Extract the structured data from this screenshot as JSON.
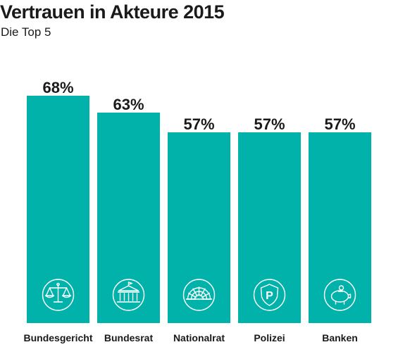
{
  "chart_data": {
    "type": "bar",
    "title": "Vertrauen in Akteure 2015",
    "subtitle": "Die Top 5",
    "categories": [
      "Bundesgericht",
      "Bundesrat",
      "Nationalrat",
      "Polizei",
      "Banken"
    ],
    "values": [
      68,
      63,
      57,
      57,
      57
    ],
    "value_labels": [
      "68%",
      "63%",
      "57%",
      "57%",
      "57%"
    ],
    "icons": [
      "scales-icon",
      "government-building-icon",
      "parliament-icon",
      "police-badge-icon",
      "piggy-bank-icon"
    ],
    "ylim": [
      0,
      100
    ],
    "grid": false,
    "legend": "none",
    "xlabel": "",
    "ylabel": ""
  },
  "colors": {
    "bar": "#00b2a9",
    "text": "#1a1a1a",
    "icon": "#ffffff"
  }
}
